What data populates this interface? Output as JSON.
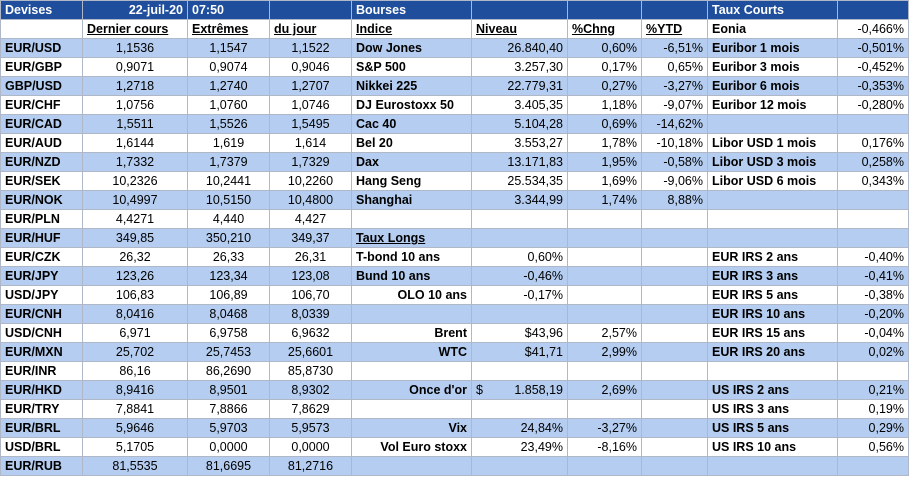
{
  "header": {
    "devises": "Devises",
    "date": "22-juil-20",
    "time": "07:50",
    "bourses": "Bourses",
    "taux_courts": "Taux Courts"
  },
  "subheader": {
    "dernier_cours": "Dernier cours",
    "extremes": "Extrêmes",
    "du_jour": "du jour",
    "indice": "Indice",
    "niveau": "Niveau",
    "pct_chng": "%Chng",
    "pct_ytd": "%YTD",
    "eonia_label": "Eonia",
    "eonia_value": "-0,466%"
  },
  "fx": [
    {
      "pair": "EUR/USD",
      "last": "1,1536",
      "hi": "1,1547",
      "lo": "1,1522"
    },
    {
      "pair": "EUR/GBP",
      "last": "0,9071",
      "hi": "0,9074",
      "lo": "0,9046"
    },
    {
      "pair": "GBP/USD",
      "last": "1,2718",
      "hi": "1,2740",
      "lo": "1,2707"
    },
    {
      "pair": "EUR/CHF",
      "last": "1,0756",
      "hi": "1,0760",
      "lo": "1,0746"
    },
    {
      "pair": "EUR/CAD",
      "last": "1,5511",
      "hi": "1,5526",
      "lo": "1,5495"
    },
    {
      "pair": "EUR/AUD",
      "last": "1,6144",
      "hi": "1,619",
      "lo": "1,614"
    },
    {
      "pair": "EUR/NZD",
      "last": "1,7332",
      "hi": "1,7379",
      "lo": "1,7329"
    },
    {
      "pair": "EUR/SEK",
      "last": "10,2326",
      "hi": "10,2441",
      "lo": "10,2260"
    },
    {
      "pair": "EUR/NOK",
      "last": "10,4997",
      "hi": "10,5150",
      "lo": "10,4800"
    },
    {
      "pair": "EUR/PLN",
      "last": "4,4271",
      "hi": "4,440",
      "lo": "4,427"
    },
    {
      "pair": "EUR/HUF",
      "last": "349,85",
      "hi": "350,210",
      "lo": "349,37"
    },
    {
      "pair": "EUR/CZK",
      "last": "26,32",
      "hi": "26,33",
      "lo": "26,31"
    },
    {
      "pair": "EUR/JPY",
      "last": "123,26",
      "hi": "123,34",
      "lo": "123,08"
    },
    {
      "pair": "USD/JPY",
      "last": "106,83",
      "hi": "106,89",
      "lo": "106,70"
    },
    {
      "pair": "EUR/CNH",
      "last": "8,0416",
      "hi": "8,0468",
      "lo": "8,0339"
    },
    {
      "pair": "USD/CNH",
      "last": "6,971",
      "hi": "6,9758",
      "lo": "6,9632"
    },
    {
      "pair": "EUR/MXN",
      "last": "25,702",
      "hi": "25,7453",
      "lo": "25,6601"
    },
    {
      "pair": "EUR/INR",
      "last": "86,16",
      "hi": "86,2690",
      "lo": "85,8730"
    },
    {
      "pair": "EUR/HKD",
      "last": "8,9416",
      "hi": "8,9501",
      "lo": "8,9302"
    },
    {
      "pair": "EUR/TRY",
      "last": "7,8841",
      "hi": "7,8866",
      "lo": "7,8629"
    },
    {
      "pair": "EUR/BRL",
      "last": "5,9646",
      "hi": "5,9703",
      "lo": "5,9573"
    },
    {
      "pair": "USD/BRL",
      "last": "5,1705",
      "hi": "0,0000",
      "lo": "0,0000"
    },
    {
      "pair": "EUR/RUB",
      "last": "81,5535",
      "hi": "81,6695",
      "lo": "81,2716"
    }
  ],
  "mid": [
    {
      "name": "Dow Jones",
      "level": "26.840,40",
      "chg": "0,60%",
      "ytd": "-6,51%"
    },
    {
      "name": "S&P 500",
      "level": "3.257,30",
      "chg": "0,17%",
      "ytd": "0,65%"
    },
    {
      "name": "Nikkei 225",
      "level": "22.779,31",
      "chg": "0,27%",
      "ytd": "-3,27%"
    },
    {
      "name": "DJ Eurostoxx 50",
      "level": "3.405,35",
      "chg": "1,18%",
      "ytd": "-9,07%"
    },
    {
      "name": "Cac 40",
      "level": "5.104,28",
      "chg": "0,69%",
      "ytd": "-14,62%"
    },
    {
      "name": "Bel 20",
      "level": "3.553,27",
      "chg": "1,78%",
      "ytd": "-10,18%"
    },
    {
      "name": "Dax",
      "level": "13.171,83",
      "chg": "1,95%",
      "ytd": "-0,58%"
    },
    {
      "name": "Hang Seng",
      "level": "25.534,35",
      "chg": "1,69%",
      "ytd": "-9,06%"
    },
    {
      "name": "Shanghai",
      "level": "3.344,99",
      "chg": "1,74%",
      "ytd": "8,88%"
    },
    {
      "name": "",
      "level": "",
      "chg": "",
      "ytd": ""
    },
    {
      "name": "Taux Longs",
      "level": "",
      "chg": "",
      "ytd": ""
    },
    {
      "name": "T-bond 10 ans",
      "level": "0,60%",
      "chg": "",
      "ytd": ""
    },
    {
      "name": "Bund 10 ans",
      "level": "-0,46%",
      "chg": "",
      "ytd": ""
    },
    {
      "name": "OLO 10 ans",
      "level": "-0,17%",
      "chg": "",
      "ytd": ""
    },
    {
      "name": "",
      "level": "",
      "chg": "",
      "ytd": ""
    },
    {
      "name": "Brent",
      "level": "$43,96",
      "chg": "2,57%",
      "ytd": ""
    },
    {
      "name": "WTC",
      "level": "$41,71",
      "chg": "2,99%",
      "ytd": ""
    },
    {
      "name": "",
      "level": "",
      "chg": "",
      "ytd": ""
    },
    {
      "name": "Once d'or",
      "level": "1.858,19",
      "chg": "2,69%",
      "ytd": "",
      "cur": "$"
    },
    {
      "name": "",
      "level": "",
      "chg": "",
      "ytd": ""
    },
    {
      "name": "Vix",
      "level": "24,84%",
      "chg": "-3,27%",
      "ytd": ""
    },
    {
      "name": "Vol Euro stoxx",
      "level": "23,49%",
      "chg": "-8,16%",
      "ytd": ""
    },
    {
      "name": "",
      "level": "",
      "chg": "",
      "ytd": ""
    }
  ],
  "right": [
    {
      "name": "Euribor 1 mois",
      "val": "-0,501%"
    },
    {
      "name": "Euribor 3 mois",
      "val": "-0,452%"
    },
    {
      "name": "Euribor 6 mois",
      "val": "-0,353%"
    },
    {
      "name": "Euribor 12 mois",
      "val": "-0,280%"
    },
    {
      "name": "",
      "val": ""
    },
    {
      "name": "Libor USD 1 mois",
      "val": "0,176%"
    },
    {
      "name": "Libor USD 3 mois",
      "val": "0,258%"
    },
    {
      "name": "Libor USD 6 mois",
      "val": "0,343%"
    },
    {
      "name": "",
      "val": ""
    },
    {
      "name": "",
      "val": ""
    },
    {
      "name": "",
      "val": ""
    },
    {
      "name": "EUR IRS 2 ans",
      "val": "-0,40%"
    },
    {
      "name": "EUR IRS 3 ans",
      "val": "-0,41%"
    },
    {
      "name": "EUR IRS 5 ans",
      "val": "-0,38%"
    },
    {
      "name": "EUR IRS 10 ans",
      "val": "-0,20%"
    },
    {
      "name": "EUR IRS 15 ans",
      "val": "-0,04%"
    },
    {
      "name": "EUR IRS 20 ans",
      "val": "0,02%"
    },
    {
      "name": "",
      "val": ""
    },
    {
      "name": "US IRS 2 ans",
      "val": "0,21%"
    },
    {
      "name": "US IRS 3 ans",
      "val": "0,19%"
    },
    {
      "name": "US IRS 5 ans",
      "val": "0,29%"
    },
    {
      "name": "US IRS 10 ans",
      "val": "0,56%"
    },
    {
      "name": "",
      "val": ""
    }
  ]
}
